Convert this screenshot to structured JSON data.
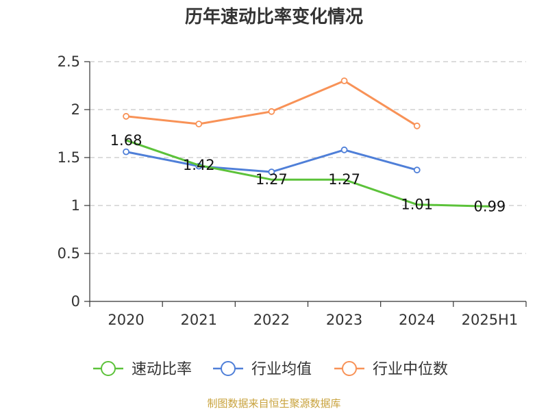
{
  "chart_data": {
    "type": "line",
    "title": "历年速动比率变化情况",
    "categories": [
      "2020",
      "2021",
      "2022",
      "2023",
      "2024",
      "2025H1"
    ],
    "ylim": [
      0,
      2.5
    ],
    "yticks": [
      "0",
      "0.5",
      "1",
      "1.5",
      "2",
      "2.5"
    ],
    "ytick_values": [
      0,
      0.5,
      1,
      1.5,
      2,
      2.5
    ],
    "grid": "horizontal-dashed",
    "legend_position": "bottom",
    "series": [
      {
        "name": "速动比率",
        "color": "#5cc23a",
        "values": [
          1.68,
          1.42,
          1.27,
          1.27,
          1.01,
          0.99
        ],
        "labels": [
          "1.68",
          "1.42",
          "1.27",
          "1.27",
          "1.01",
          "0.99"
        ]
      },
      {
        "name": "行业均值",
        "color": "#4f7fd8",
        "values": [
          1.56,
          1.41,
          1.35,
          1.58,
          1.37,
          null
        ]
      },
      {
        "name": "行业中位数",
        "color": "#f89257",
        "values": [
          1.93,
          1.85,
          1.98,
          2.3,
          1.83,
          null
        ]
      }
    ]
  },
  "source_note": "制图数据来自恒生聚源数据库",
  "source_color": "#c8a23c"
}
